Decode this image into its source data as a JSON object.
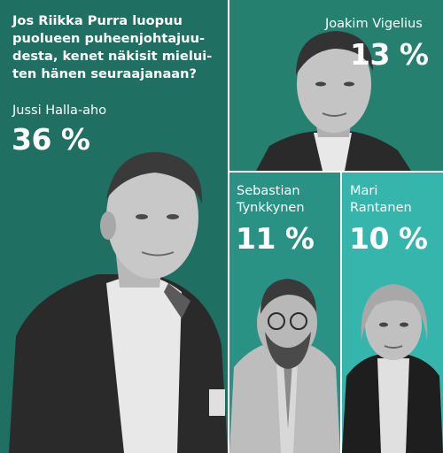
{
  "chart_data": {
    "type": "infographic-poll",
    "title": "Jos Riikka Purra luopuu puolueen puheenjohtajuu-desta, kenet näkisit mieluiten hänen seuraajanaan?",
    "candidates": [
      {
        "name": "Jussi Halla-aho",
        "value": 36,
        "value_label": "36 %"
      },
      {
        "name": "Joakim Vigelius",
        "value": 13,
        "value_label": "13 %"
      },
      {
        "name": "Sebastian\nTynkkynen",
        "value": 11,
        "value_label": "11 %"
      },
      {
        "name": "Mari\nRantanen",
        "value": 10,
        "value_label": "10 %"
      }
    ],
    "title_lines": "Jos Riikka Purra luopuu\npuolueen puheenjohtajuu-\ndesta, kenet näkisit mielui-\nten hänen seuraajanaan?"
  },
  "colors": {
    "panel_main": "#1f6f62",
    "panel_top": "#26806f",
    "panel_mid": "#2a9285",
    "panel_right": "#35b5ab",
    "text": "#ffffff"
  }
}
